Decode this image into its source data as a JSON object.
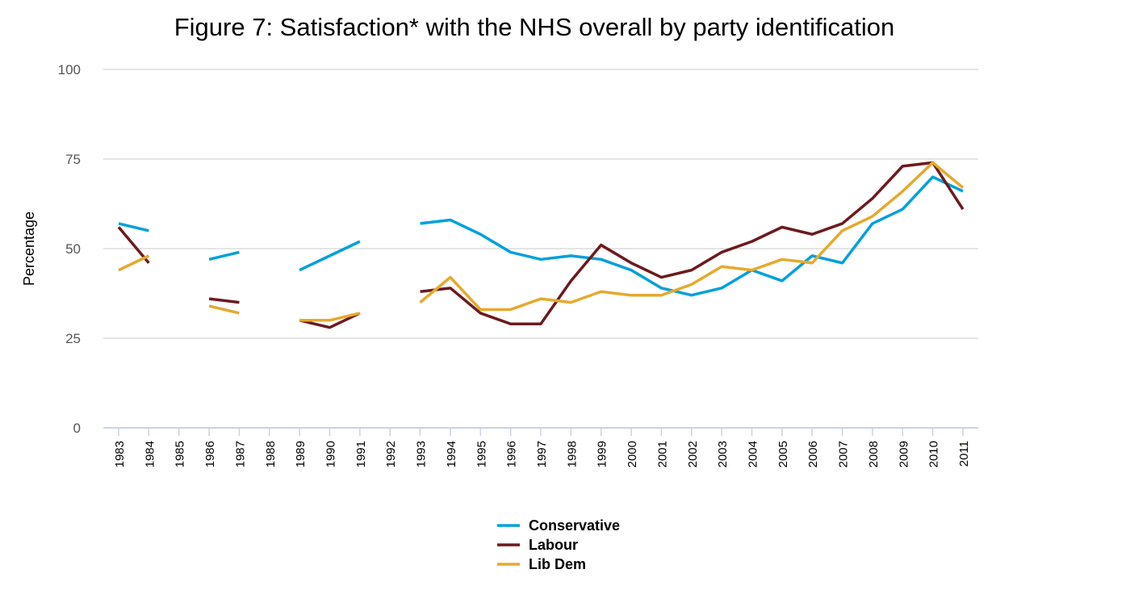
{
  "chart_data": {
    "type": "line",
    "title": "Figure 7: Satisfaction* with the NHS overall by party identification",
    "xlabel": "",
    "ylabel": "Percentage",
    "ylim": [
      0,
      100
    ],
    "yticks": [
      0,
      25,
      50,
      75,
      100
    ],
    "grid": true,
    "legend_position": "bottom",
    "x": [
      1983,
      1984,
      1985,
      1986,
      1987,
      1988,
      1989,
      1990,
      1991,
      1992,
      1993,
      1994,
      1995,
      1996,
      1997,
      1998,
      1999,
      2000,
      2001,
      2002,
      2003,
      2004,
      2005,
      2006,
      2007,
      2008,
      2009,
      2010,
      2011
    ],
    "series": [
      {
        "name": "Conservative",
        "color": "#00a0dc",
        "values": [
          57,
          55,
          null,
          47,
          49,
          null,
          44,
          48,
          52,
          null,
          57,
          58,
          54,
          49,
          47,
          48,
          47,
          44,
          39,
          37,
          39,
          44,
          41,
          48,
          46,
          57,
          61,
          70,
          66
        ]
      },
      {
        "name": "Labour",
        "color": "#6d1a1e",
        "values": [
          56,
          46,
          null,
          36,
          35,
          null,
          30,
          28,
          32,
          null,
          38,
          39,
          32,
          29,
          29,
          41,
          51,
          46,
          42,
          44,
          49,
          52,
          56,
          54,
          57,
          64,
          73,
          74,
          61
        ]
      },
      {
        "name": "Lib Dem",
        "color": "#e6a92c",
        "values": [
          44,
          48,
          null,
          34,
          32,
          null,
          30,
          30,
          32,
          null,
          35,
          42,
          33,
          33,
          36,
          35,
          38,
          37,
          37,
          40,
          45,
          44,
          47,
          46,
          55,
          59,
          66,
          74,
          67
        ]
      }
    ]
  }
}
